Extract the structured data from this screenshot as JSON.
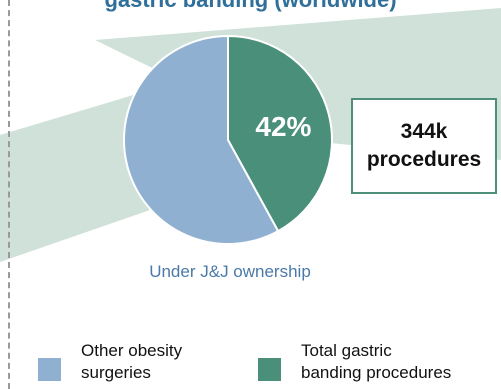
{
  "chart_data": {
    "type": "pie",
    "title": "gastric banding (worldwide)",
    "slices": [
      {
        "name": "Total gastric banding procedures",
        "value": 42,
        "label": "42%",
        "color": "#4a8f79"
      },
      {
        "name": "Other obesity surgeries",
        "value": 58,
        "label": "",
        "color": "#8fb0d0"
      }
    ],
    "caption": "Under J&J ownership",
    "callout": {
      "line1": "344k",
      "line2": "procedures"
    },
    "legend": [
      {
        "line1": "Other obesity",
        "line2": "surgeries",
        "color": "#8fb0d0"
      },
      {
        "line1": "Total gastric",
        "line2": "banding procedures",
        "color": "#4a8f79"
      }
    ]
  }
}
